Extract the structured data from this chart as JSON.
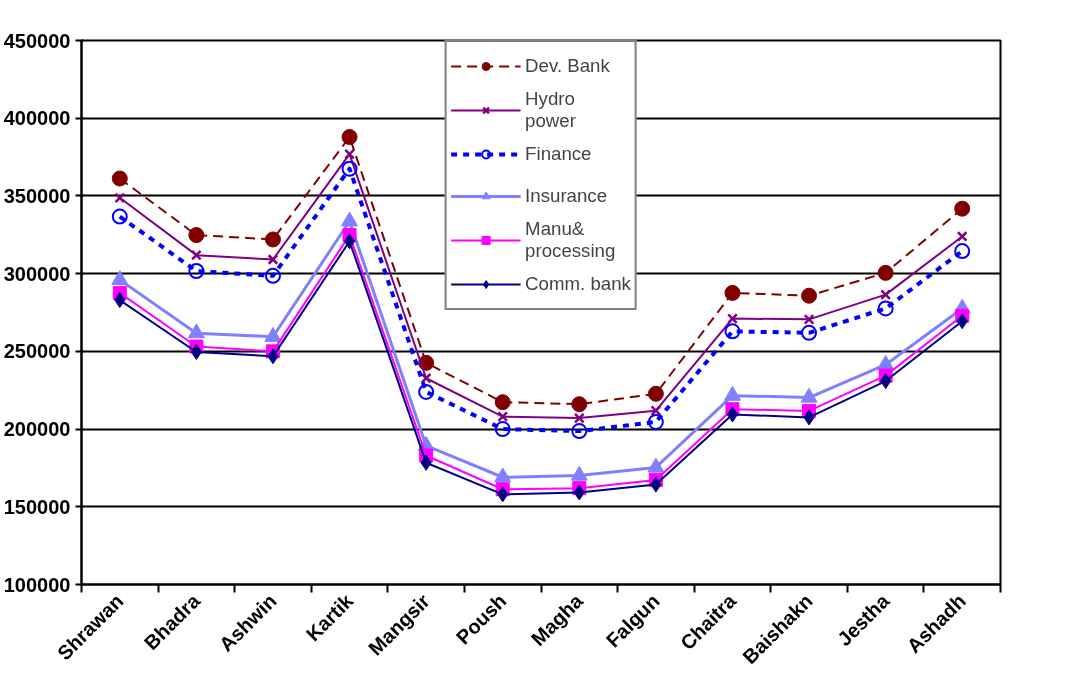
{
  "chart_data": {
    "type": "line",
    "categories": [
      "Shrawan",
      "Bhadra",
      "Ashwin",
      "Kartik",
      "Mangsir",
      "Poush",
      "Magha",
      "Falgun",
      "Chaitra",
      "Baishakn",
      "Jestha",
      "Ashadh"
    ],
    "ylim": [
      100000,
      450000
    ],
    "yticks": [
      100000,
      150000,
      200000,
      250000,
      300000,
      350000,
      400000,
      450000
    ],
    "grid": "y",
    "legend": "top",
    "series": [
      {
        "name": "Dev. Bank",
        "color": "#800000",
        "marker": "circle",
        "line_style": "dashed",
        "values": [
          361200,
          324800,
          322000,
          387900,
          242600,
          217300,
          216000,
          222700,
          287600,
          285800,
          300500,
          341800
        ]
      },
      {
        "name": "Hydro power",
        "color": "#800080",
        "marker": "cross",
        "line_style": "solid",
        "values": [
          348800,
          311900,
          309100,
          376900,
          232700,
          208000,
          207100,
          211800,
          271100,
          270600,
          286500,
          323900
        ]
      },
      {
        "name": "Finance",
        "color": "#0000ff",
        "marker": "circle",
        "line_style": "dotted",
        "values": [
          336700,
          301700,
          298600,
          367500,
          223900,
          200000,
          198700,
          204600,
          262900,
          261900,
          277600,
          314500
        ]
      },
      {
        "name": "Insurance",
        "color": "#8080ff",
        "marker": "triangle",
        "line_style": "solid",
        "values": [
          296000,
          261700,
          259400,
          333700,
          189300,
          169000,
          170100,
          175300,
          221500,
          220300,
          241400,
          277600
        ]
      },
      {
        "name": "Manu& processing",
        "color": "#ff00ff",
        "marker": "square",
        "line_style": "solid",
        "values": [
          287600,
          253100,
          250000,
          324800,
          183000,
          161300,
          162000,
          167300,
          212800,
          211700,
          234400,
          272900
        ]
      },
      {
        "name": "Comm. bank",
        "color": "#000080",
        "marker": "diamond",
        "line_style": "solid",
        "values": [
          283000,
          249600,
          246800,
          320800,
          178300,
          158000,
          159200,
          164300,
          209400,
          207500,
          230900,
          269400
        ]
      }
    ]
  }
}
